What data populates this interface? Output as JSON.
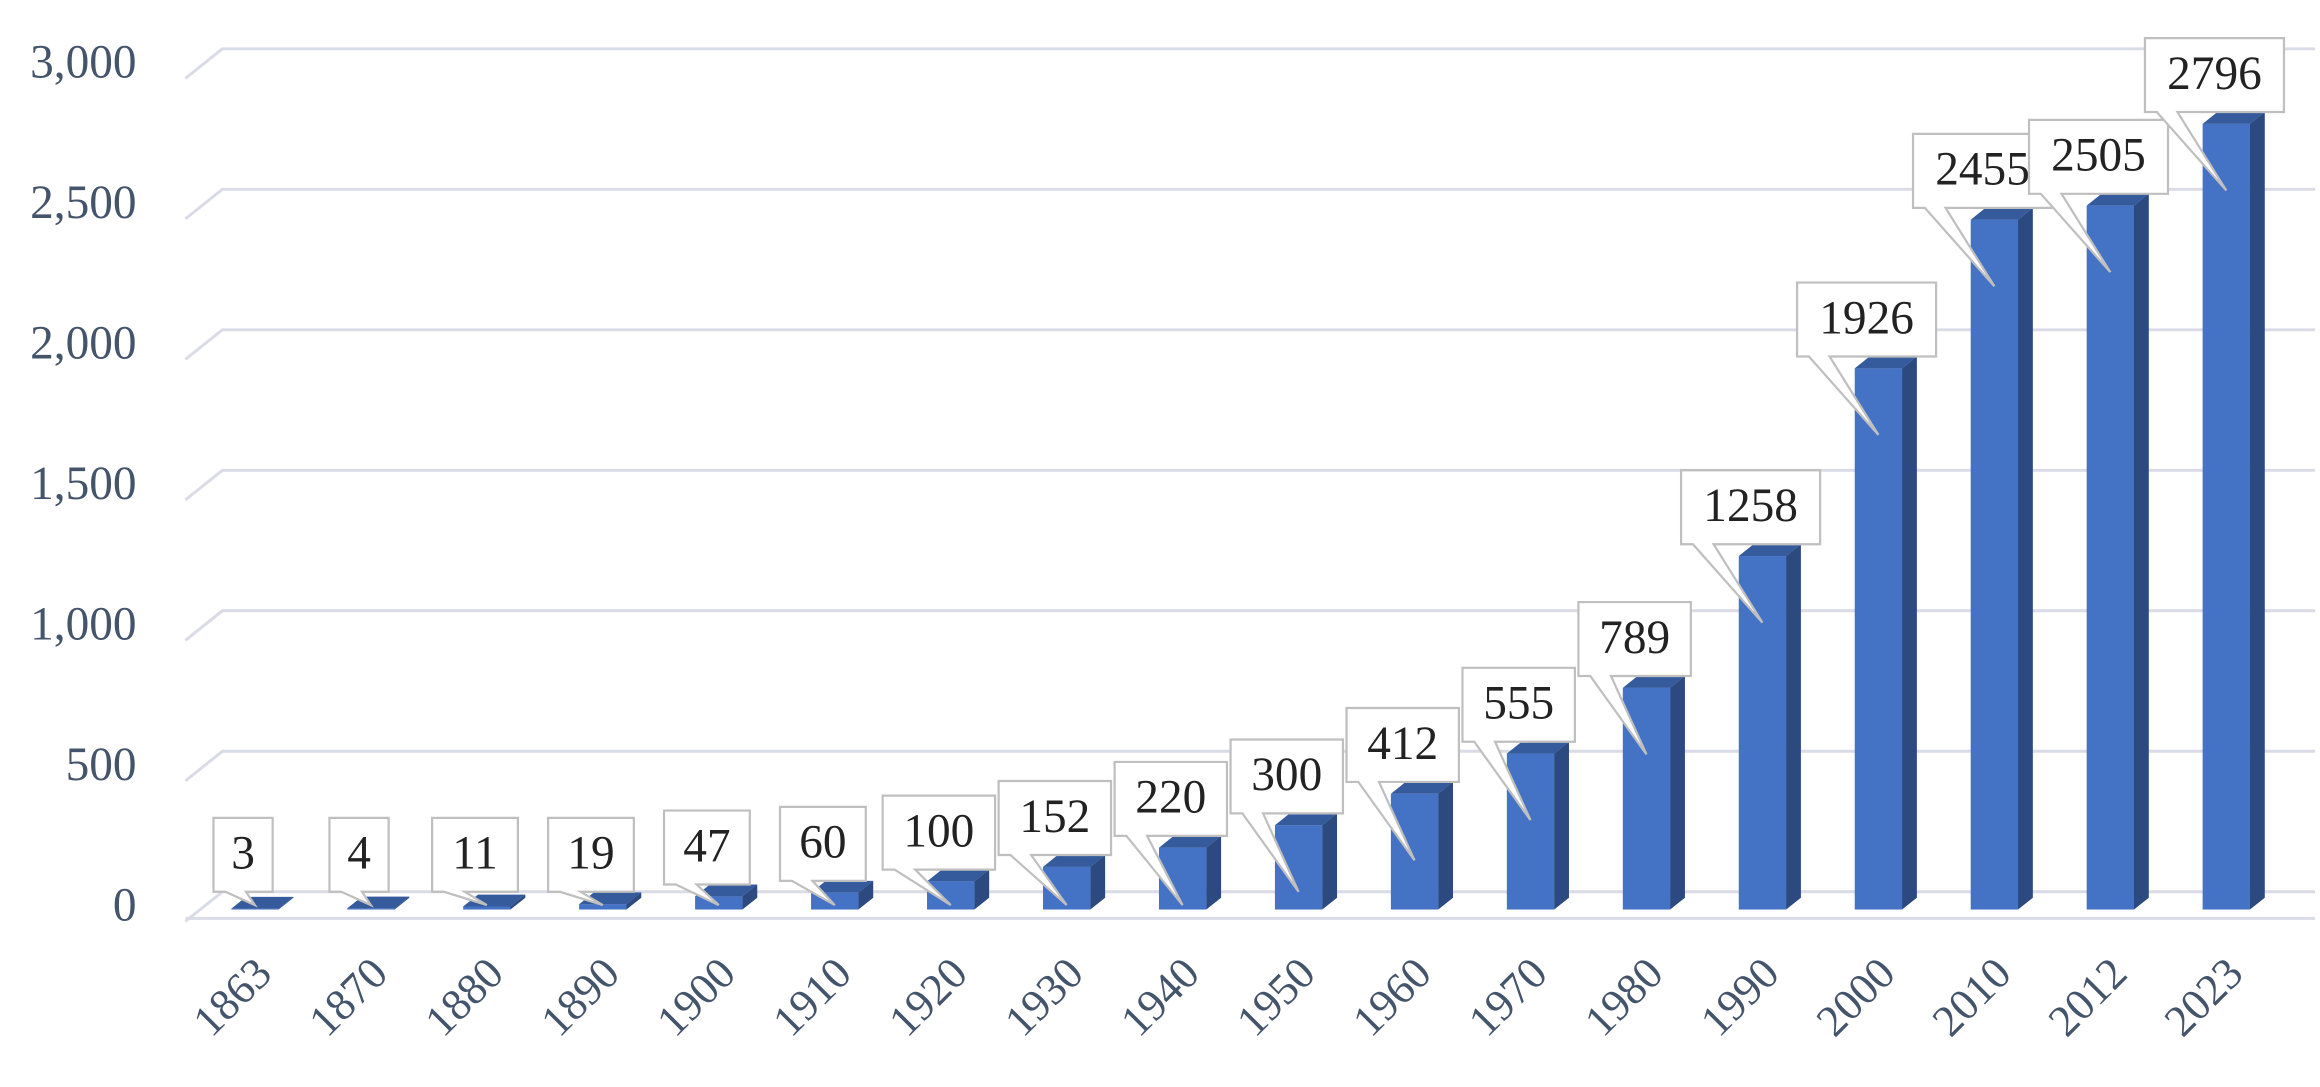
{
  "chart_data": {
    "type": "bar",
    "categories": [
      "1863",
      "1870",
      "1880",
      "1890",
      "1900",
      "1910",
      "1920",
      "1930",
      "1940",
      "1950",
      "1960",
      "1970",
      "1980",
      "1990",
      "2000",
      "2010",
      "2012",
      "2023"
    ],
    "values": [
      3,
      4,
      11,
      19,
      47,
      60,
      100,
      152,
      220,
      300,
      412,
      555,
      789,
      1258,
      1926,
      2455,
      2505,
      2796
    ],
    "color": "#4472c4",
    "ylim": [
      0,
      3000
    ],
    "yticks": [
      0,
      500,
      {
        "value": 1000,
        "label": "1,000"
      },
      {
        "value": 1500,
        "label": "1,500"
      },
      {
        "value": 2000,
        "label": "2,000"
      },
      {
        "value": 2500,
        "label": "2,500"
      },
      {
        "value": 3000,
        "label": "3,000"
      }
    ],
    "grid": true
  }
}
